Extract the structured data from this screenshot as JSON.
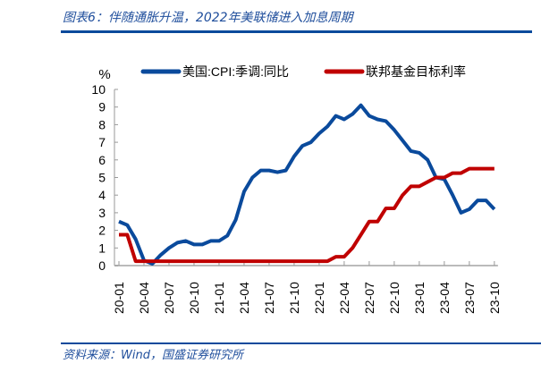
{
  "title": "图表6：伴随通胀升温，2022年美联储进入加息周期",
  "source": "资料来源：Wind，国盛证券研究所",
  "chart_data": {
    "type": "line",
    "ylabel": "%",
    "ylim": [
      0,
      10
    ],
    "yticks": [
      "0",
      "1",
      "2",
      "3",
      "4",
      "5",
      "6",
      "7",
      "8",
      "9",
      "10"
    ],
    "grid": false,
    "legend_placement": "top",
    "xticks": [
      "20-01",
      "20-04",
      "20-07",
      "20-10",
      "21-01",
      "21-04",
      "21-07",
      "21-10",
      "22-01",
      "22-04",
      "22-07",
      "22-10",
      "23-01",
      "23-04",
      "23-07",
      "23-10"
    ],
    "x_start": "2020-01",
    "x_end": "2023-10",
    "series": [
      {
        "name": "美国:CPI:季调:同比",
        "color": "#0a4a9c",
        "values": [
          2.5,
          2.3,
          1.5,
          0.3,
          0.1,
          0.6,
          1.0,
          1.3,
          1.4,
          1.2,
          1.2,
          1.4,
          1.4,
          1.7,
          2.6,
          4.2,
          5.0,
          5.4,
          5.4,
          5.3,
          5.4,
          6.2,
          6.8,
          7.0,
          7.5,
          7.9,
          8.5,
          8.3,
          8.6,
          9.1,
          8.5,
          8.3,
          8.2,
          7.7,
          7.1,
          6.5,
          6.4,
          6.0,
          5.0,
          4.9,
          4.0,
          3.0,
          3.2,
          3.7,
          3.7,
          3.2
        ]
      },
      {
        "name": "联邦基金目标利率",
        "color": "#c00000",
        "values": [
          1.75,
          1.75,
          0.25,
          0.25,
          0.25,
          0.25,
          0.25,
          0.25,
          0.25,
          0.25,
          0.25,
          0.25,
          0.25,
          0.25,
          0.25,
          0.25,
          0.25,
          0.25,
          0.25,
          0.25,
          0.25,
          0.25,
          0.25,
          0.25,
          0.25,
          0.25,
          0.5,
          0.5,
          1.0,
          1.75,
          2.5,
          2.5,
          3.25,
          3.25,
          4.0,
          4.5,
          4.5,
          4.75,
          5.0,
          5.0,
          5.25,
          5.25,
          5.5,
          5.5,
          5.5,
          5.5
        ]
      }
    ]
  }
}
